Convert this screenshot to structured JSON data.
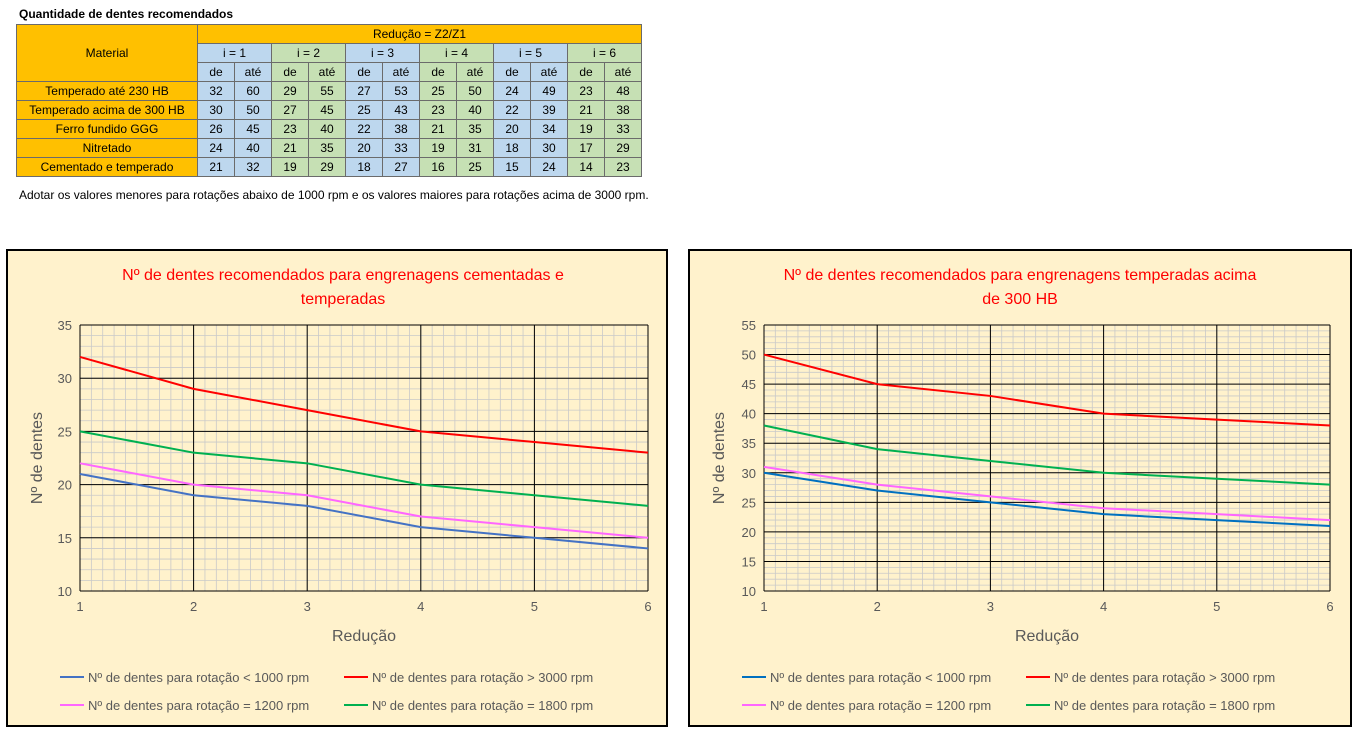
{
  "heading": "Quantidade de dentes recomendados",
  "table": {
    "material_header": "Material",
    "reduction_header": "Redução = Z2/Z1",
    "ratios": [
      "i = 1",
      "i = 2",
      "i = 3",
      "i = 4",
      "i = 5",
      "i = 6"
    ],
    "sub_from": "de",
    "sub_to": "até",
    "rows": [
      {
        "material": "Temperado até 230 HB",
        "values": [
          32,
          60,
          29,
          55,
          27,
          53,
          25,
          50,
          24,
          49,
          23,
          48
        ]
      },
      {
        "material": "Temperado acima de 300 HB",
        "values": [
          30,
          50,
          27,
          45,
          25,
          43,
          23,
          40,
          22,
          39,
          21,
          38
        ]
      },
      {
        "material": "Ferro fundido GGG",
        "values": [
          26,
          45,
          23,
          40,
          22,
          38,
          21,
          35,
          20,
          34,
          19,
          33
        ]
      },
      {
        "material": "Nitretado",
        "values": [
          24,
          40,
          21,
          35,
          20,
          33,
          19,
          31,
          18,
          30,
          17,
          29
        ]
      },
      {
        "material": "Cementado e temperado",
        "values": [
          21,
          32,
          19,
          29,
          18,
          27,
          16,
          25,
          15,
          24,
          14,
          23
        ]
      }
    ]
  },
  "note": "Adotar os valores menores para rotações abaixo de 1000 rpm e os valores maiores para rotações acima de 3000 rpm.",
  "chart_data": [
    {
      "type": "line",
      "title_lines": [
        "Nº de dentes recomendados para engrenagens cementadas e",
        "temperadas"
      ],
      "xlabel": "Redução",
      "ylabel": "Nº de dentes",
      "x": [
        1,
        2,
        3,
        4,
        5,
        6
      ],
      "xlim": [
        1,
        6
      ],
      "ylim": [
        10,
        35
      ],
      "yticks": [
        10,
        15,
        20,
        25,
        30,
        35
      ],
      "grid": true,
      "legend_position": "bottom",
      "series": [
        {
          "name": "Nº de dentes para rotação < 1000 rpm",
          "color": "#4472c4",
          "values": [
            21,
            19,
            18,
            16,
            15,
            14
          ]
        },
        {
          "name": "Nº de dentes para rotação > 3000 rpm",
          "color": "#ff0000",
          "values": [
            32,
            29,
            27,
            25,
            24,
            23
          ]
        },
        {
          "name": "Nº de dentes para rotação = 1200 rpm",
          "color": "#ff66ff",
          "values": [
            22,
            20,
            19,
            17,
            16,
            15
          ]
        },
        {
          "name": "Nº de dentes para rotação = 1800 rpm",
          "color": "#00b050",
          "values": [
            25,
            23,
            22,
            20,
            19,
            18
          ]
        }
      ]
    },
    {
      "type": "line",
      "title_lines": [
        "Nº de dentes recomendados para engrenagens temperadas acima",
        "de 300 HB"
      ],
      "xlabel": "Redução",
      "ylabel": "Nº de dentes",
      "x": [
        1,
        2,
        3,
        4,
        5,
        6
      ],
      "xlim": [
        1,
        6
      ],
      "ylim": [
        10,
        55
      ],
      "yticks": [
        10,
        15,
        20,
        25,
        30,
        35,
        40,
        45,
        50,
        55
      ],
      "grid": true,
      "legend_position": "bottom",
      "series": [
        {
          "name": "Nº de dentes para rotação < 1000 rpm",
          "color": "#0070c0",
          "values": [
            30,
            27,
            25,
            23,
            22,
            21
          ]
        },
        {
          "name": "Nº de dentes para rotação > 3000 rpm",
          "color": "#ff0000",
          "values": [
            50,
            45,
            43,
            40,
            39,
            38
          ]
        },
        {
          "name": "Nº de dentes para rotação = 1200 rpm",
          "color": "#ff66ff",
          "values": [
            31,
            28,
            26,
            24,
            23,
            22
          ]
        },
        {
          "name": "Nº de dentes para rotação = 1800 rpm",
          "color": "#00b050",
          "values": [
            38,
            34,
            32,
            30,
            29,
            28
          ]
        }
      ]
    }
  ]
}
